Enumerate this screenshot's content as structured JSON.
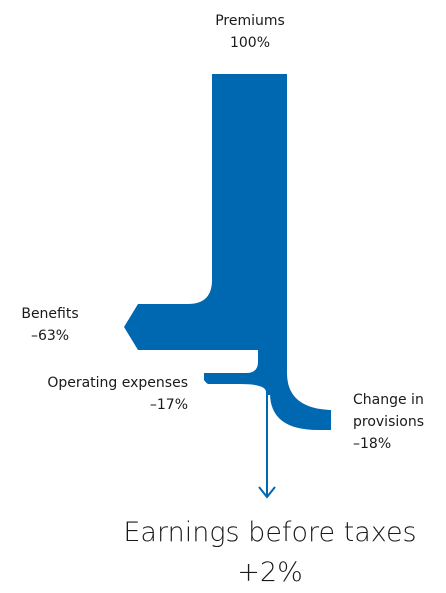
{
  "colors": {
    "flow": "#0067b1",
    "text": "#1a1a1a",
    "background": "#ffffff"
  },
  "flows": {
    "premiums": {
      "name": "Premiums",
      "value": "100%",
      "share": 100
    },
    "benefits": {
      "name": "Benefits",
      "value": "–63%",
      "share": 63
    },
    "operating": {
      "name": "Operating expenses",
      "value": "–17%",
      "share": 17
    },
    "provisions": {
      "line1": "Change in",
      "line2": "provisions",
      "value": "–18%",
      "share": 18
    }
  },
  "result": {
    "name": "Earnings before taxes",
    "value": "+2%",
    "share": 2
  }
}
